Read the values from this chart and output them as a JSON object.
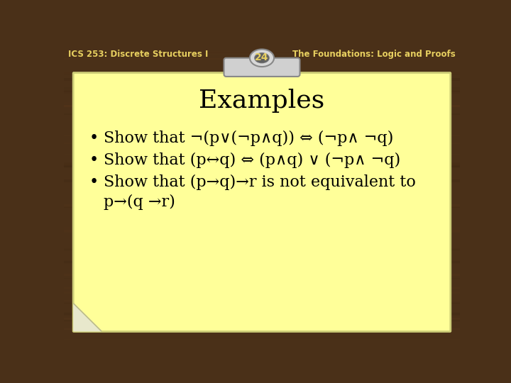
{
  "header_left": "ICS 253: Discrete Structures I",
  "header_right": "The Foundations: Logic and Proofs",
  "slide_number": "24",
  "title": "Examples",
  "bullet1": "Show that ¬(p∨(¬p∧q)) ⇔ (¬p∧ ¬q)",
  "bullet2": "Show that (p↔q) ⇔ (p∧q) ∨ (¬p∧ ¬q)",
  "bullet3a": "Show that (p→q)→r is not equivalent to",
  "bullet3b": "p→(q →r)",
  "bg_color": "#4a3018",
  "header_text_color": "#e8d060",
  "note_color": "#ffff99",
  "note_edge_color": "#cccc77",
  "title_color": "#000000",
  "bullet_color": "#000000",
  "slide_num_color": "#e8d060",
  "clip_color": "#d0d0d0",
  "clip_edge": "#909090",
  "clip_ring_color": "#c8c8c8",
  "clip_ring_inner": "#b0b0b0"
}
